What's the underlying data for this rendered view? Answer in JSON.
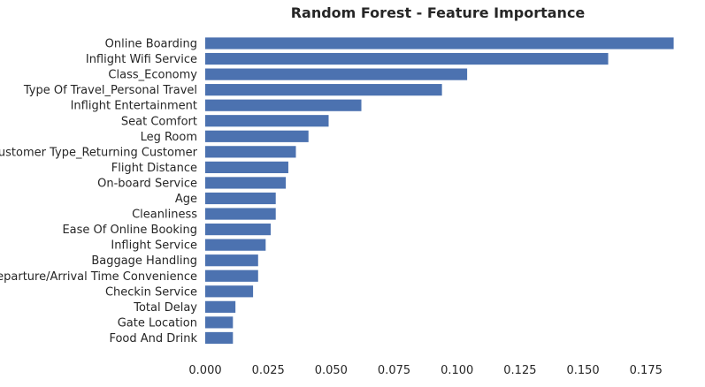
{
  "chart_data": {
    "type": "bar",
    "orientation": "horizontal",
    "title": "Random Forest - Feature Importance",
    "xlabel": "",
    "ylabel": "",
    "categories": [
      "Online Boarding",
      "Inflight Wifi Service",
      "Class_Economy",
      "Type Of Travel_Personal Travel",
      "Inflight Entertainment",
      "Seat Comfort",
      "Leg Room",
      "Customer Type_Returning Customer",
      "Flight Distance",
      "On-board Service",
      "Age",
      "Cleanliness",
      "Ease Of Online Booking",
      "Inflight Service",
      "Baggage Handling",
      "Departure/Arrival Time Convenience",
      "Checkin Service",
      "Total Delay",
      "Gate Location",
      "Food And Drink"
    ],
    "values": [
      0.186,
      0.16,
      0.104,
      0.094,
      0.062,
      0.049,
      0.041,
      0.036,
      0.033,
      0.032,
      0.028,
      0.028,
      0.026,
      0.024,
      0.021,
      0.021,
      0.019,
      0.012,
      0.011,
      0.011
    ],
    "xlim": [
      0,
      0.1865
    ],
    "xticks": [
      0.0,
      0.025,
      0.05,
      0.075,
      0.1,
      0.125,
      0.15,
      0.175
    ],
    "xtick_labels": [
      "0.000",
      "0.025",
      "0.050",
      "0.075",
      "0.100",
      "0.125",
      "0.150",
      "0.175"
    ],
    "grid": false,
    "bar_color": "#4c72b0"
  }
}
